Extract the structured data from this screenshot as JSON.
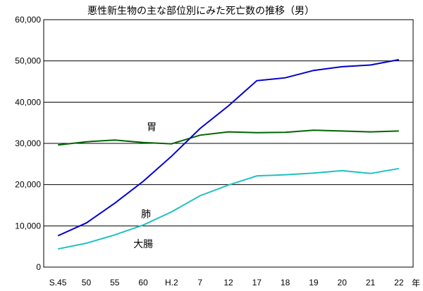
{
  "chart_data": {
    "type": "line",
    "title": "悪性新生物の主な部位別にみた死亡数の推移（男）",
    "xlabel": "年",
    "ylabel": "",
    "categories": [
      "S.45",
      "50",
      "55",
      "60",
      "H.2",
      "7",
      "12",
      "17",
      "18",
      "19",
      "20",
      "21",
      "22"
    ],
    "ylim": [
      0,
      60000
    ],
    "y_ticks": [
      "0",
      "10,000",
      "20,000",
      "30,000",
      "40,000",
      "50,000",
      "60,000"
    ],
    "grid": true,
    "legend": "inline labels",
    "series": [
      {
        "name": "胃",
        "color": "#006400",
        "values": [
          29600,
          30400,
          30800,
          30200,
          29900,
          32000,
          32800,
          32600,
          32700,
          33200,
          33000,
          32800,
          33000
        ]
      },
      {
        "name": "肺",
        "color": "#0000cd",
        "values": [
          7600,
          10700,
          15500,
          20800,
          26900,
          33600,
          39100,
          45200,
          45900,
          47700,
          48600,
          49000,
          50300
        ]
      },
      {
        "name": "大腸",
        "color": "#20c0c0",
        "values": [
          4400,
          5800,
          7800,
          10200,
          13400,
          17300,
          19900,
          22100,
          22400,
          22800,
          23400,
          22700,
          23900
        ]
      }
    ]
  }
}
